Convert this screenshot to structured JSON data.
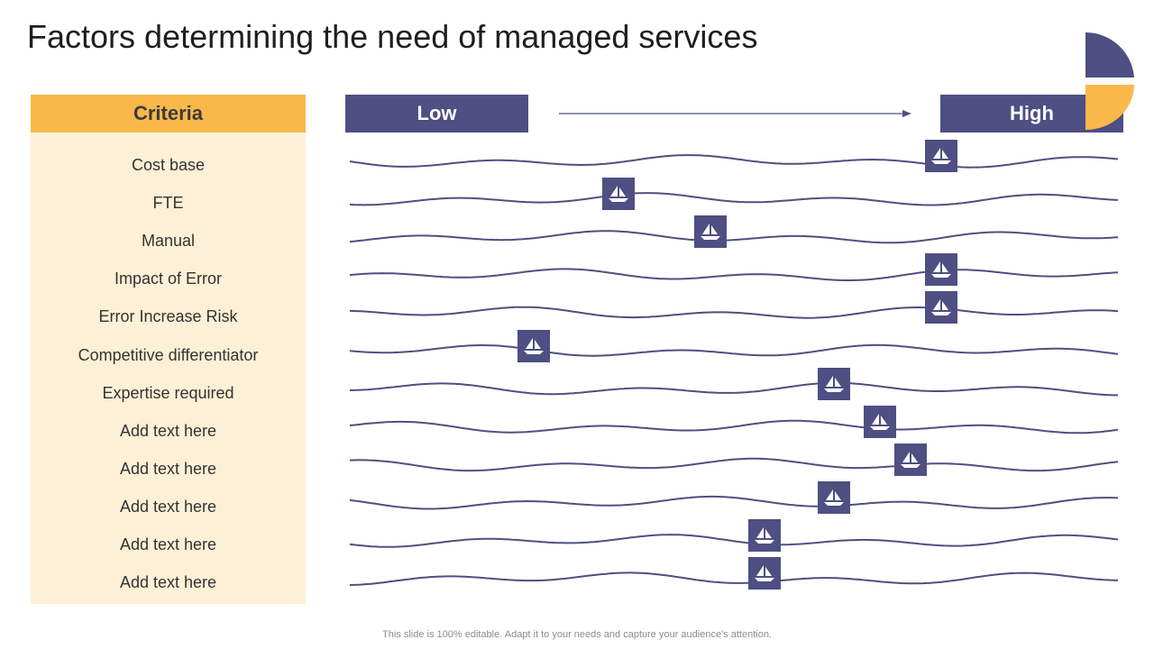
{
  "title": "Factors determining the need of managed services",
  "criteria_header": "Criteria",
  "scale": {
    "low_label": "Low",
    "high_label": "High"
  },
  "criteria": [
    {
      "label": "Cost base",
      "level": 0.77
    },
    {
      "label": "FTE",
      "level": 0.35
    },
    {
      "label": "Manual",
      "level": 0.47
    },
    {
      "label": "Impact of Error",
      "level": 0.77
    },
    {
      "label": "Error Increase Risk",
      "level": 0.77
    },
    {
      "label": "Competitive differentiator",
      "level": 0.24
    },
    {
      "label": "Expertise required",
      "level": 0.63
    },
    {
      "label": "Add text here",
      "level": 0.69
    },
    {
      "label": "Add text here",
      "level": 0.73
    },
    {
      "label": "Add text here",
      "level": 0.63
    },
    {
      "label": "Add text here",
      "level": 0.54
    },
    {
      "label": "Add text here",
      "level": 0.54
    }
  ],
  "footer": "This slide is 100% editable. Adapt it to your needs and capture your audience's attention.",
  "colors": {
    "navy": "#4e4f82",
    "orange": "#fbb84a",
    "cream": "#fdf0d6"
  },
  "icons": {
    "marker": "sailboat-icon"
  }
}
